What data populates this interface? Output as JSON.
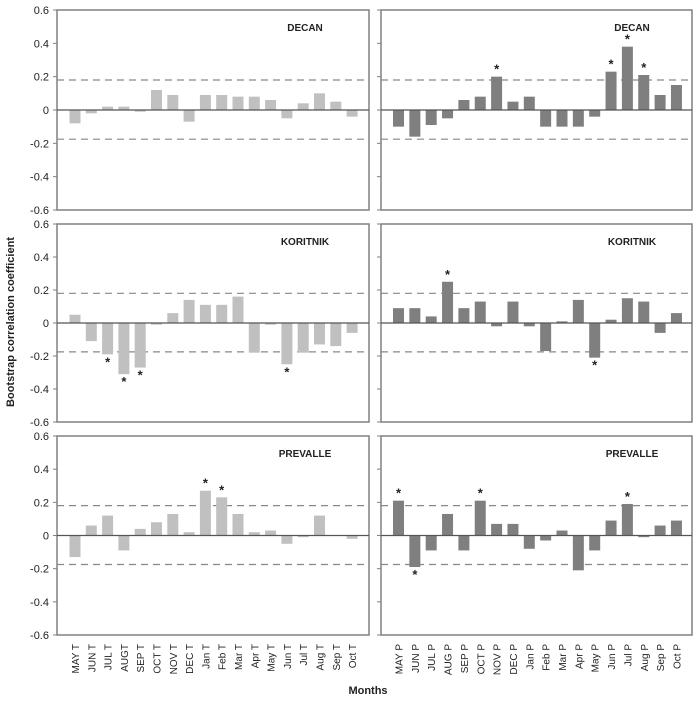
{
  "chart_data": {
    "type": "bar",
    "ylabel": "Bootstrap correlation coefficient",
    "xlabel": "Months",
    "ylim": [
      -0.6,
      0.6
    ],
    "yticks": [
      "0.6",
      "0.4",
      "0.2",
      "0",
      "-0.2",
      "-0.4",
      "-0.6"
    ],
    "ytick_values": [
      0.6,
      0.4,
      0.2,
      0,
      -0.2,
      -0.4,
      -0.6
    ],
    "significance_thresholds": [
      0.18,
      -0.175
    ],
    "significance_marker": "*",
    "categories_temperature": [
      "MAY T",
      "JUN T",
      "JUL T",
      "AUGT",
      "SEP T",
      "OCT T",
      "NOV T",
      "DEC T",
      "Jan T",
      "Feb T",
      "Mar T",
      "Apr T",
      "May T",
      "Jun T",
      "Jul T",
      "Aug T",
      "Sep T",
      "Oct T"
    ],
    "categories_precipitation": [
      "MAY P",
      "JUN P",
      "JUL P",
      "AUG P",
      "SEP P",
      "OCT P",
      "NOV P",
      "DEC P",
      "Jan P",
      "Feb P",
      "Mar P",
      "Apr P",
      "May P",
      "Jun P",
      "Jul P",
      "Aug P",
      "Sep P",
      "Oct P"
    ],
    "colors": {
      "temperature": "#c0c0c0",
      "precipitation": "#7f7f7f"
    },
    "panels": [
      {
        "site": "DECAN",
        "variable": "temperature",
        "values": [
          -0.08,
          -0.02,
          0.02,
          0.02,
          -0.01,
          0.12,
          0.09,
          -0.07,
          0.09,
          0.09,
          0.08,
          0.08,
          0.06,
          -0.05,
          0.04,
          0.1,
          0.05,
          -0.04
        ],
        "significant": []
      },
      {
        "site": "DECAN",
        "variable": "precipitation",
        "values": [
          -0.1,
          -0.16,
          -0.09,
          -0.05,
          0.06,
          0.08,
          0.2,
          0.05,
          0.08,
          -0.1,
          -0.1,
          -0.1,
          -0.04,
          0.23,
          0.38,
          0.21,
          0.09,
          0.15
        ],
        "significant": [
          6,
          13,
          14,
          15
        ]
      },
      {
        "site": "KORITNIK",
        "variable": "temperature",
        "values": [
          0.05,
          -0.11,
          -0.19,
          -0.31,
          -0.27,
          -0.01,
          0.06,
          0.14,
          0.11,
          0.11,
          0.16,
          -0.18,
          -0.01,
          -0.25,
          -0.18,
          -0.13,
          -0.14,
          -0.06
        ],
        "significant": [
          2,
          3,
          4,
          13
        ]
      },
      {
        "site": "KORITNIK",
        "variable": "precipitation",
        "values": [
          0.09,
          0.09,
          0.04,
          0.25,
          0.09,
          0.13,
          -0.02,
          0.13,
          -0.02,
          -0.17,
          0.01,
          0.14,
          -0.21,
          0.02,
          0.15,
          0.13,
          -0.06,
          0.06
        ],
        "significant": [
          3,
          12
        ]
      },
      {
        "site": "PREVALLE",
        "variable": "temperature",
        "values": [
          -0.13,
          0.06,
          0.12,
          -0.09,
          0.04,
          0.08,
          0.13,
          0.02,
          0.27,
          0.23,
          0.13,
          0.02,
          0.03,
          -0.05,
          -0.01,
          0.12,
          0.0,
          -0.02
        ],
        "significant": [
          8,
          9
        ]
      },
      {
        "site": "PREVALLE",
        "variable": "precipitation",
        "values": [
          0.21,
          -0.19,
          -0.09,
          0.13,
          -0.09,
          0.21,
          0.07,
          0.07,
          -0.08,
          -0.03,
          0.03,
          -0.21,
          -0.09,
          0.09,
          0.19,
          -0.01,
          0.06,
          0.09
        ],
        "significant": [
          0,
          1,
          5,
          14
        ]
      }
    ]
  }
}
